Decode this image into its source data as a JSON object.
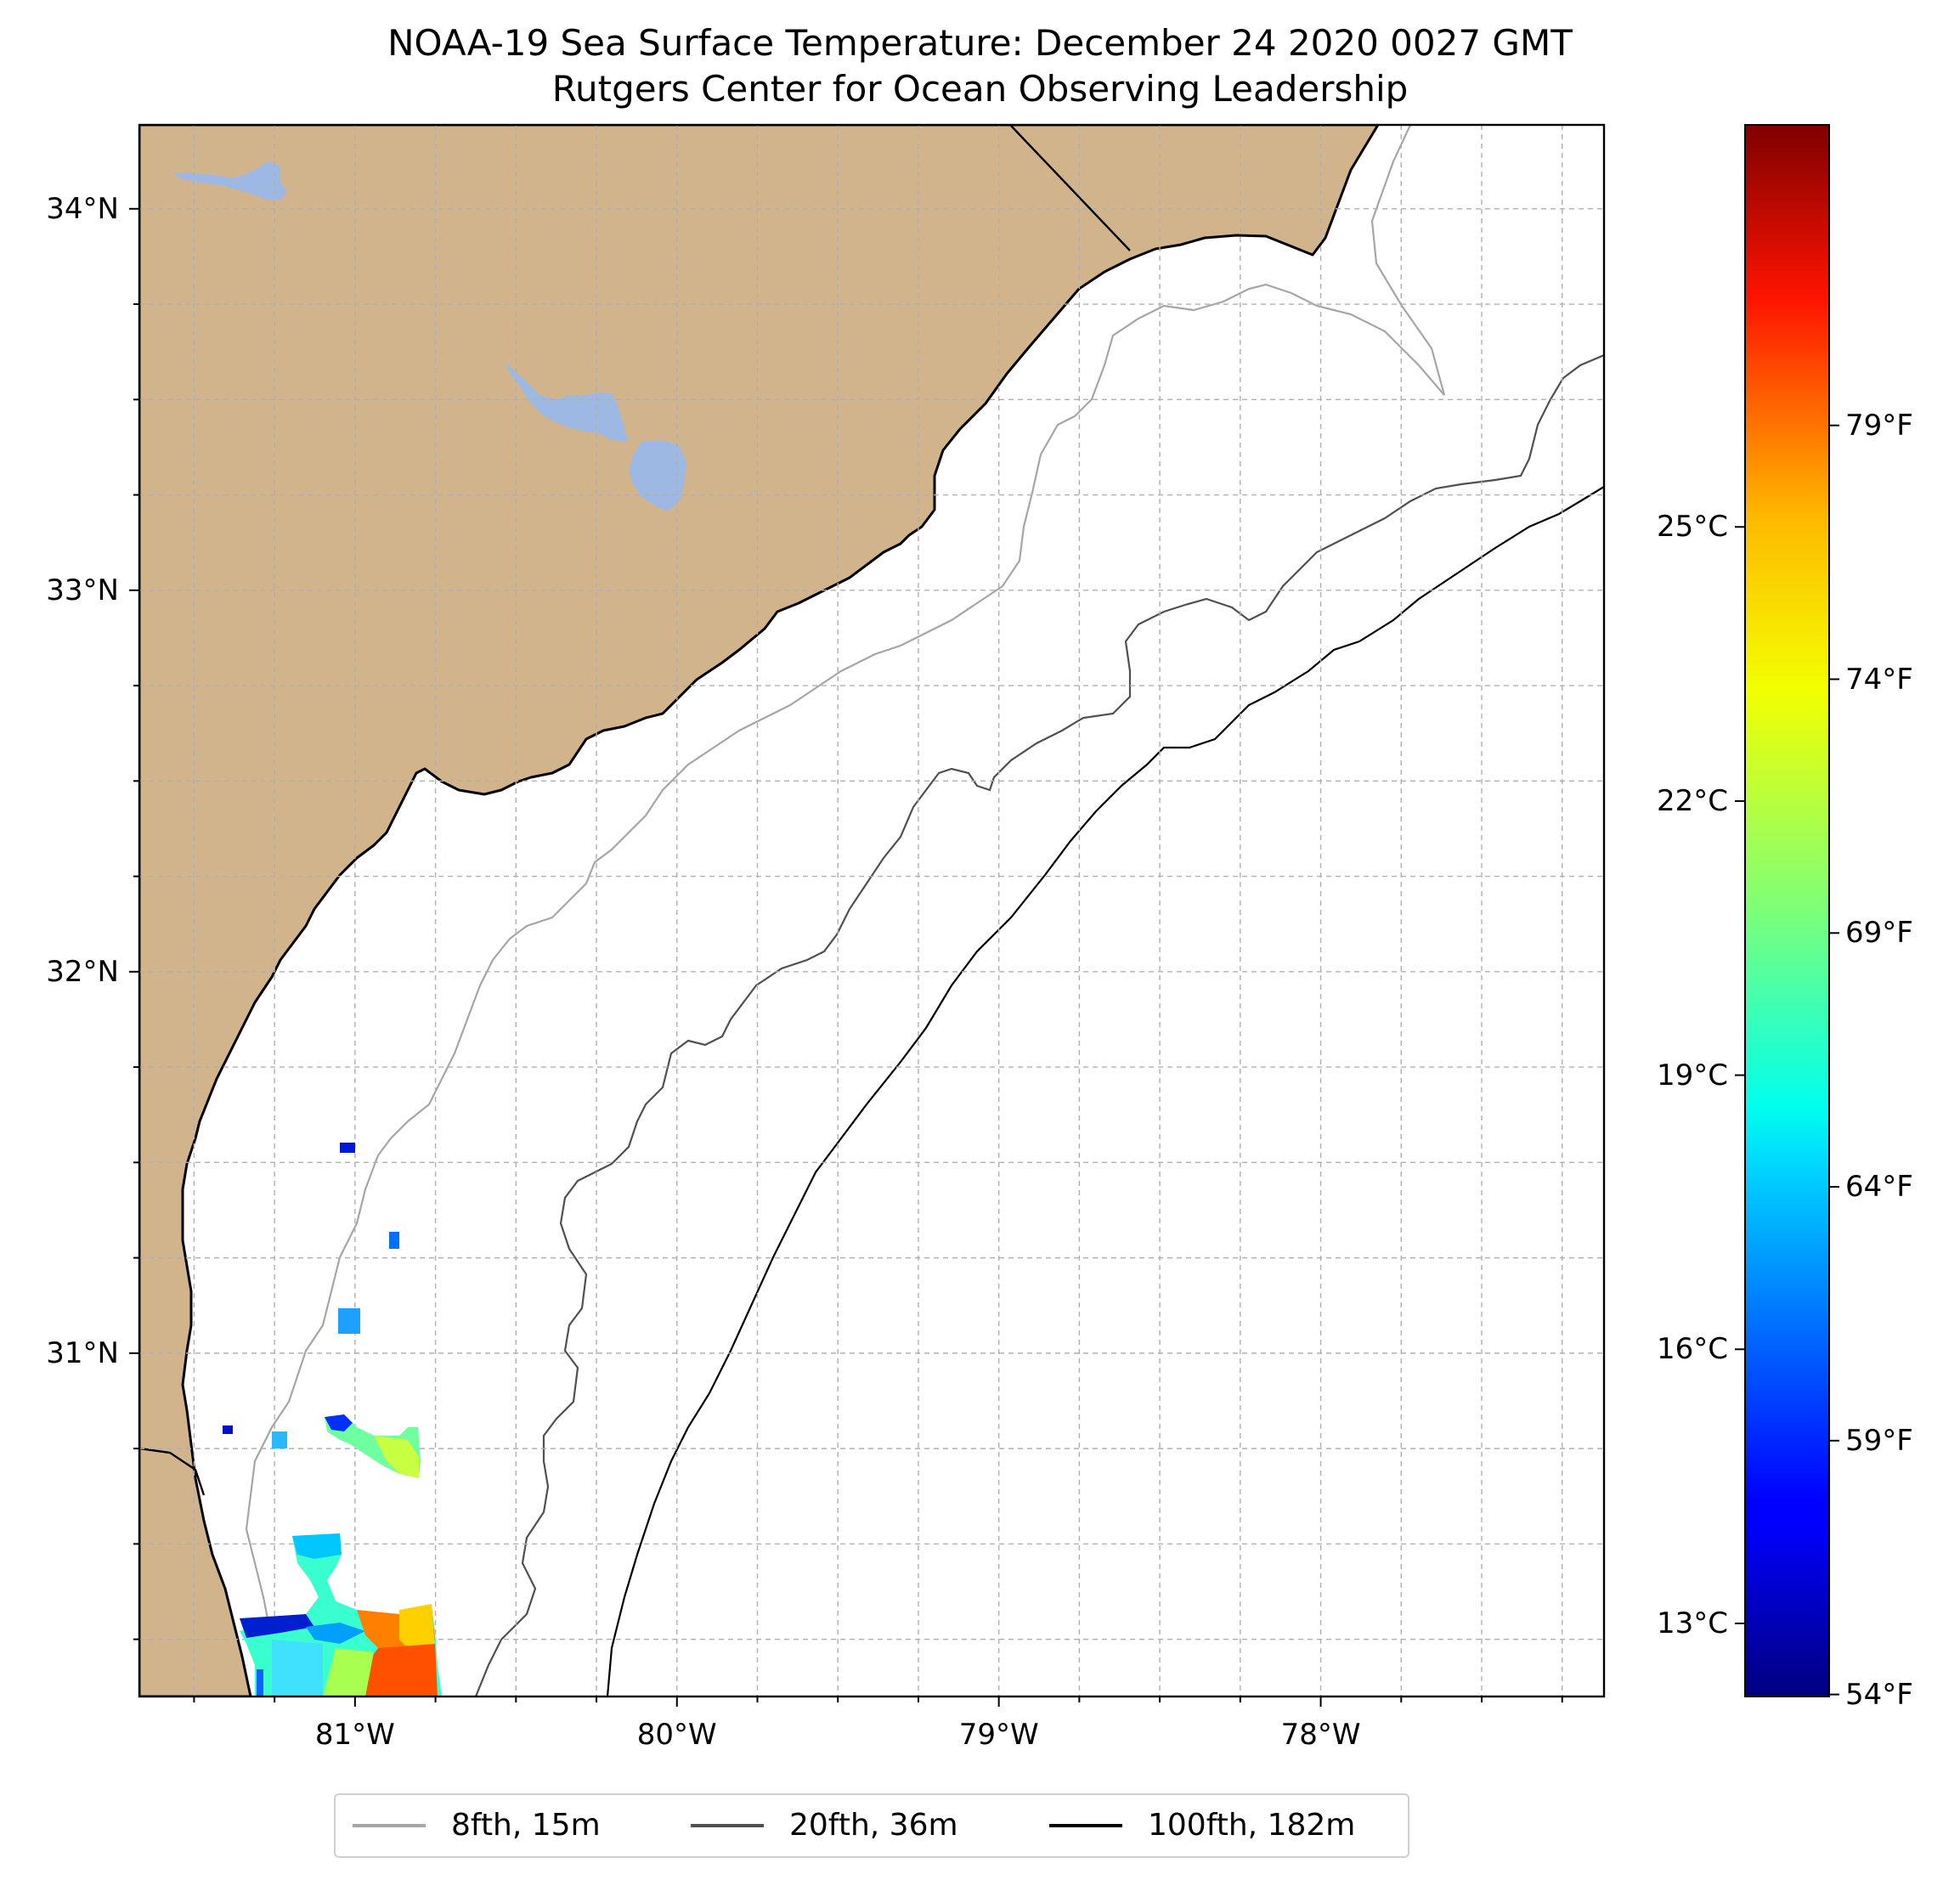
{
  "title": {
    "line1": "NOAA-19 Sea Surface Temperature: December 24 2020 0027 GMT",
    "line2": "Rutgers Center for Ocean Observing Leadership"
  },
  "map": {
    "lat_range": [
      30.1,
      34.22
    ],
    "lon_range": [
      -81.67,
      -77.12
    ],
    "lat_ticks": [
      {
        "lat": 34,
        "label": "34°N"
      },
      {
        "lat": 33,
        "label": "33°N"
      },
      {
        "lat": 32,
        "label": "32°N"
      },
      {
        "lat": 31,
        "label": "31°N"
      }
    ],
    "lon_ticks": [
      {
        "lon": -81,
        "label": "81°W"
      },
      {
        "lon": -80,
        "label": "80°W"
      },
      {
        "lon": -79,
        "label": "79°W"
      },
      {
        "lon": -78,
        "label": "78°W"
      }
    ],
    "gridlines": true,
    "colors": {
      "land": "#d2b48c",
      "water_body": "#9db9e3",
      "ocean": "#ffffff",
      "coastline": "#000000"
    }
  },
  "colorbar": {
    "colormap": "jet",
    "range_c": [
      12.2,
      29.4
    ],
    "celsius_ticks": [
      {
        "value": 25,
        "label": "25°C"
      },
      {
        "value": 22,
        "label": "22°C"
      },
      {
        "value": 19,
        "label": "19°C"
      },
      {
        "value": 16,
        "label": "16°C"
      },
      {
        "value": 13,
        "label": "13°C"
      }
    ],
    "fahrenheit_ticks": [
      {
        "value": 79,
        "label": "79°F"
      },
      {
        "value": 74,
        "label": "74°F"
      },
      {
        "value": 69,
        "label": "69°F"
      },
      {
        "value": 64,
        "label": "64°F"
      },
      {
        "value": 59,
        "label": "59°F"
      },
      {
        "value": 54,
        "label": "54°F"
      }
    ]
  },
  "legend": {
    "items": [
      {
        "label": "8fth, 15m",
        "color": "#a6a6a6"
      },
      {
        "label": "20fth, 36m",
        "color": "#505050"
      },
      {
        "label": "100fth, 182m",
        "color": "#000000"
      }
    ]
  }
}
